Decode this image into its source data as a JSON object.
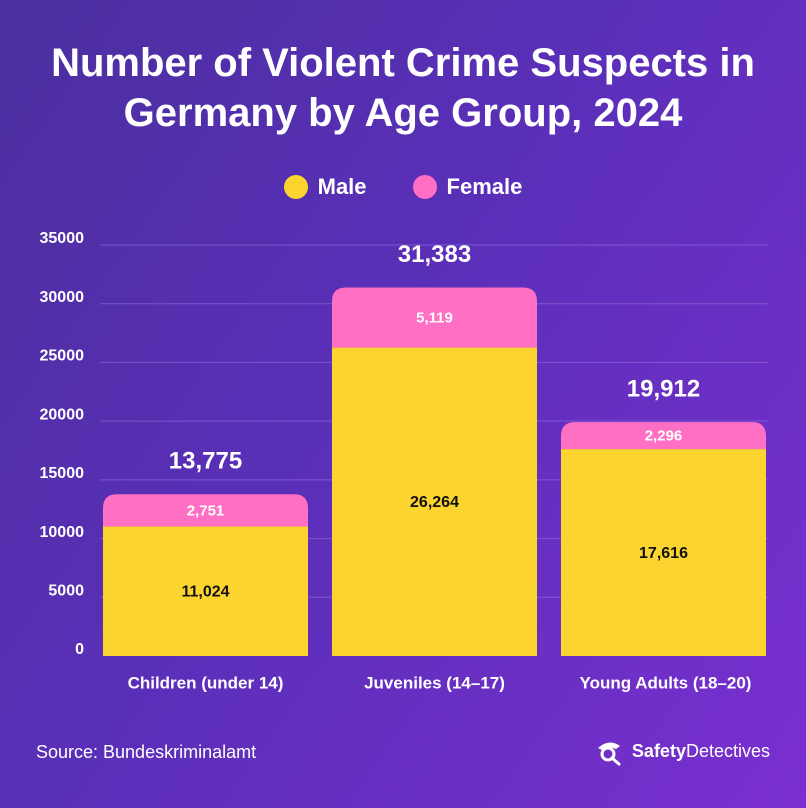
{
  "header": {
    "title": "Number of Violent Crime Suspects in Germany by Age Group, 2024"
  },
  "legend": {
    "male_label": "Male",
    "female_label": "Female"
  },
  "colors": {
    "male": "#fcd42f",
    "female": "#ff6fc4",
    "grid": "#8a6ad6"
  },
  "footer": {
    "source": "Source: Bundeskriminalamt",
    "brand_part1": "Safety",
    "brand_part2": "Detectives"
  },
  "chart_data": {
    "type": "bar",
    "stacked": true,
    "title": "Number of Violent Crime Suspects in Germany by Age Group, 2024",
    "categories": [
      "Children (under 14)",
      "Juveniles (14–17)",
      "Young Adults (18–20)"
    ],
    "series": [
      {
        "name": "Male",
        "values": [
          11024,
          26264,
          17616
        ],
        "labels": [
          "11,024",
          "26,264",
          "17,616"
        ]
      },
      {
        "name": "Female",
        "values": [
          2751,
          5119,
          2296
        ],
        "labels": [
          "2,751",
          "5,119",
          "2,296"
        ]
      }
    ],
    "totals": [
      13775,
      31383,
      19912
    ],
    "total_labels": [
      "13,775",
      "31,383",
      "19,912"
    ],
    "yticks": [
      0,
      5000,
      10000,
      15000,
      20000,
      25000,
      30000,
      35000
    ],
    "ylim": [
      0,
      35000
    ],
    "xlabel": "",
    "ylabel": "",
    "legend_position": "top-center",
    "grid": true
  }
}
